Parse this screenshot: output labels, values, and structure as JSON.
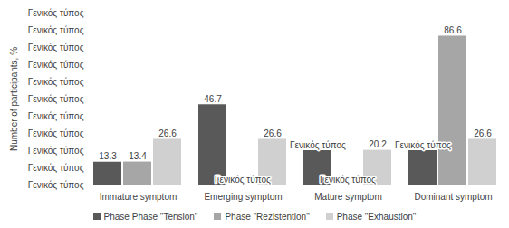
{
  "chart_data": {
    "type": "bar",
    "y_label": "Number of participants, %",
    "categories": [
      "Immature symptom",
      "Emerging symptom",
      "Mature symptom",
      "Dominant symptom"
    ],
    "series": [
      {
        "name": "Phase Phase \"Tension\"",
        "color": "#595959",
        "values": [
          13.3,
          46.7,
          20,
          20
        ],
        "value_labels": [
          "13.3",
          "46.7",
          "Γενικός τύπος",
          "Γενικός τύπος"
        ]
      },
      {
        "name": "Phase \"Rezistention\"",
        "color": "#a6a6a6",
        "values": [
          13.4,
          0,
          0,
          86.6
        ],
        "value_labels": [
          "13.4",
          "Γενικός τύπος",
          "Γενικός τύπος",
          "86.6"
        ]
      },
      {
        "name": "Phase \"Exhaustion\"",
        "color": "#d0d0d0",
        "values": [
          26.6,
          26.6,
          20.2,
          26.6
        ],
        "value_labels": [
          "26.6",
          "26.6",
          "20.2",
          "26.6"
        ]
      }
    ],
    "ylim": [
      0,
      100
    ],
    "yticks": [
      {
        "value": 0,
        "label": "Γενικός τύπος"
      },
      {
        "value": 10,
        "label": "Γενικός τύπος"
      },
      {
        "value": 20,
        "label": "Γενικός τύπος"
      },
      {
        "value": 30,
        "label": "Γενικός τύπος"
      },
      {
        "value": 40,
        "label": "Γενικός τύπος"
      },
      {
        "value": 50,
        "label": "Γενικός τύπος"
      },
      {
        "value": 60,
        "label": "Γενικός τύπος"
      },
      {
        "value": 70,
        "label": "Γενικός τύπος"
      },
      {
        "value": 80,
        "label": "Γενικός τύπος"
      },
      {
        "value": 90,
        "label": "Γενικός τύπος"
      },
      {
        "value": 100,
        "label": "Γενικός τύπος"
      }
    ],
    "grid": false,
    "legend": "bottom",
    "data_labels": true
  }
}
